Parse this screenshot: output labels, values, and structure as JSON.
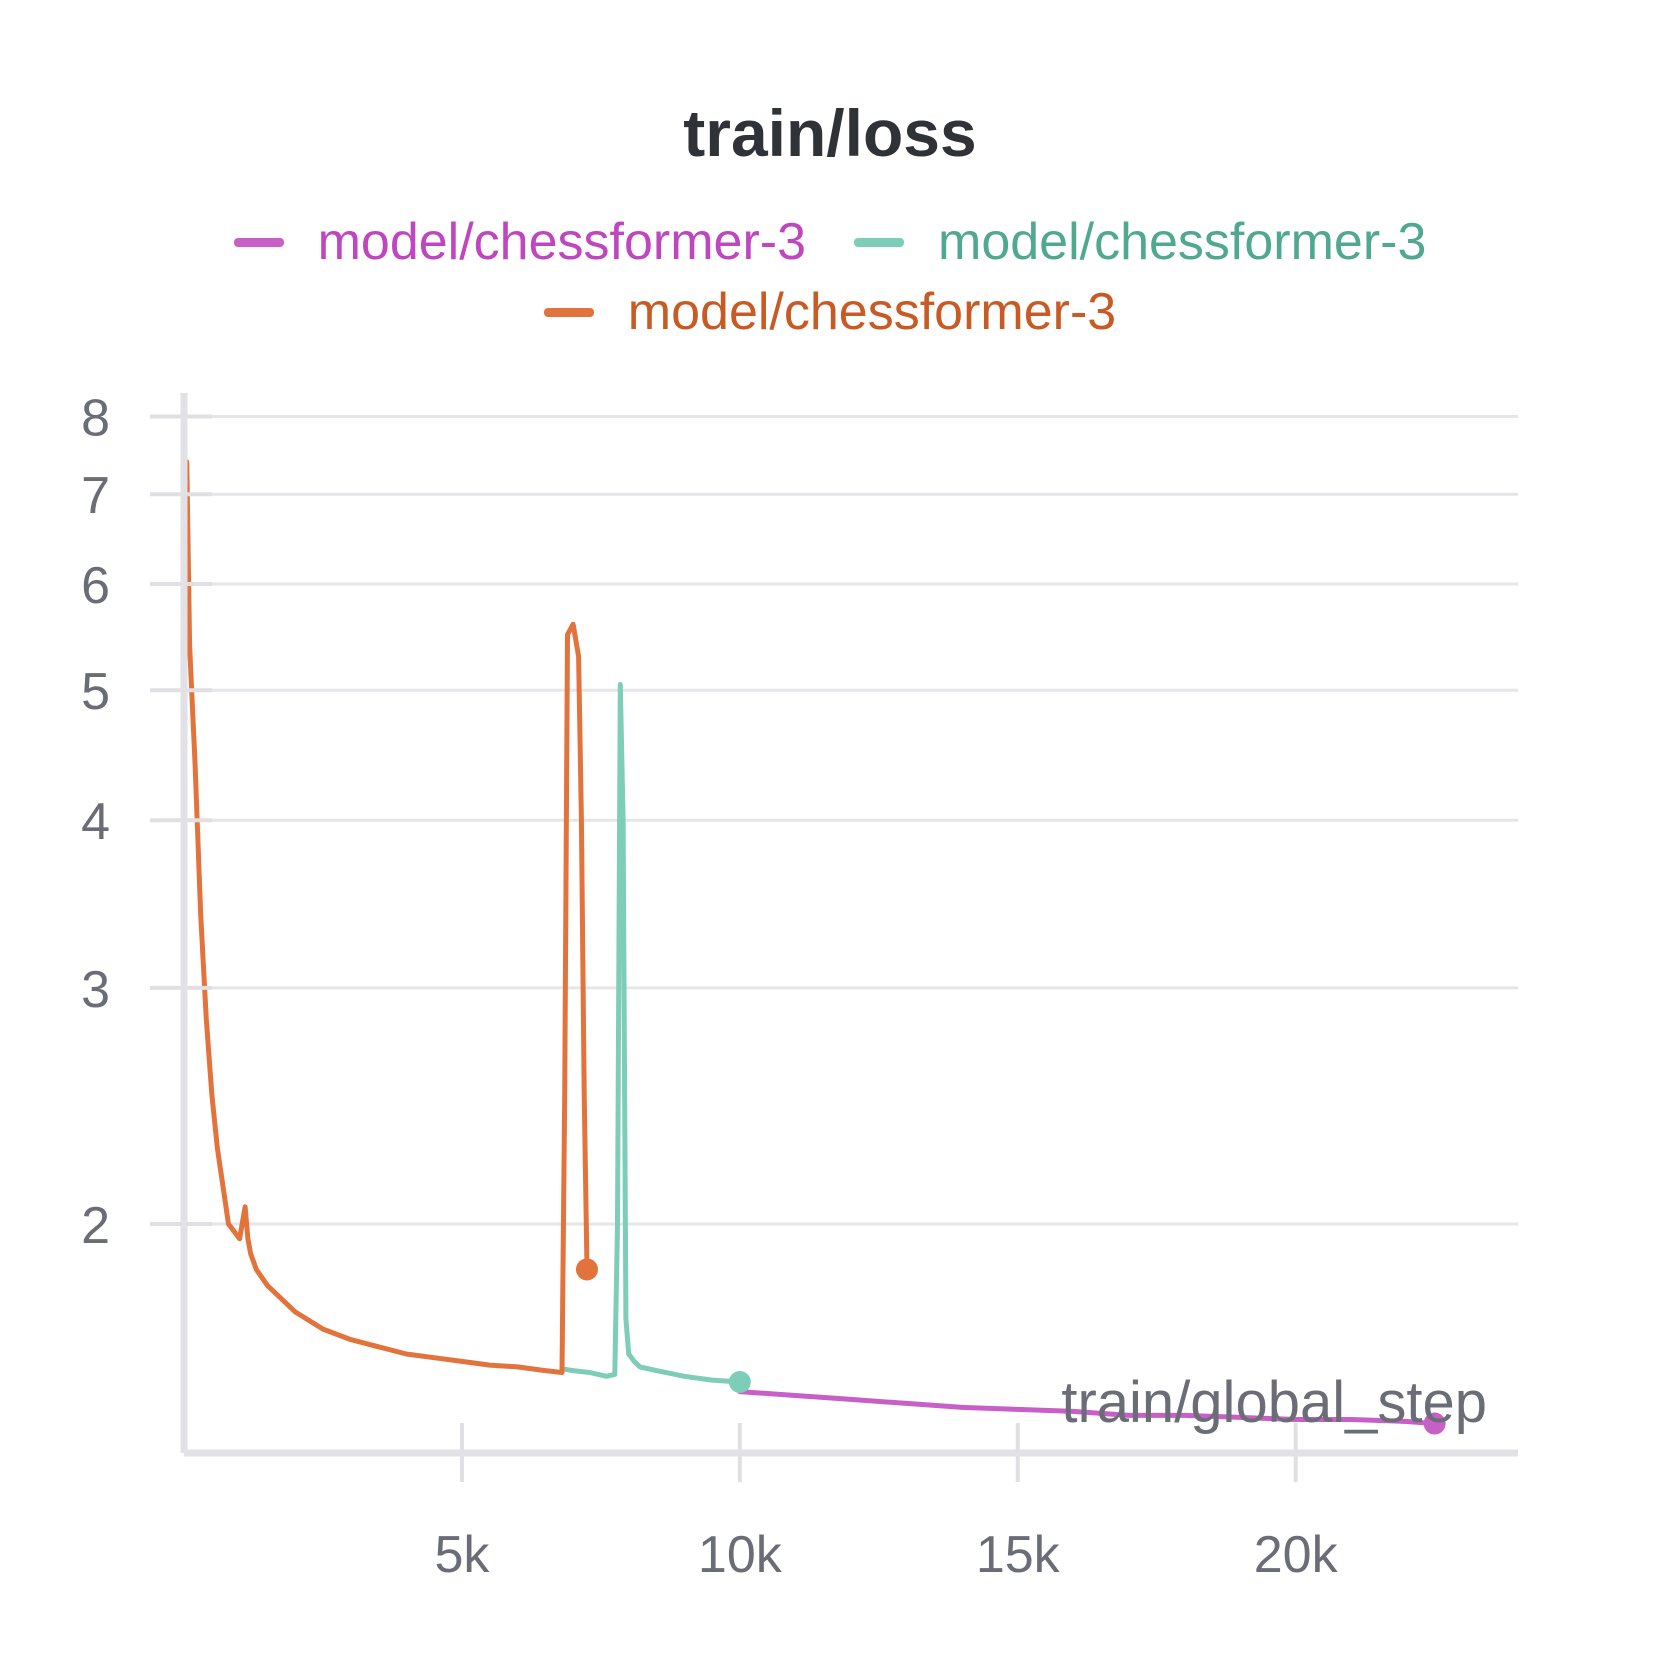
{
  "chart_data": {
    "type": "line",
    "title": "train/loss",
    "xlabel": "train/global_step",
    "ylabel": "",
    "yscale": "log",
    "xlim": [
      0,
      24000
    ],
    "ylim": [
      1.35,
      8.3
    ],
    "x_ticks": [
      {
        "value": 5000,
        "label": "5k"
      },
      {
        "value": 10000,
        "label": "10k"
      },
      {
        "value": 15000,
        "label": "15k"
      },
      {
        "value": 20000,
        "label": "20k"
      }
    ],
    "y_ticks": [
      {
        "value": 2,
        "label": "2"
      },
      {
        "value": 3,
        "label": "3"
      },
      {
        "value": 4,
        "label": "4"
      },
      {
        "value": 5,
        "label": "5"
      },
      {
        "value": 6,
        "label": "6"
      },
      {
        "value": 7,
        "label": "7"
      },
      {
        "value": 8,
        "label": "8"
      }
    ],
    "grid": true,
    "legend_position": "top-center",
    "series": [
      {
        "name": "model/chessformer-3",
        "color": "#c75fc7",
        "x": [
          10000,
          11000,
          12000,
          13000,
          14000,
          15000,
          16000,
          17000,
          18000,
          19000,
          20000,
          21000,
          22000,
          22500
        ],
        "y": [
          1.5,
          1.49,
          1.48,
          1.47,
          1.46,
          1.455,
          1.45,
          1.44,
          1.44,
          1.435,
          1.43,
          1.43,
          1.425,
          1.42
        ]
      },
      {
        "name": "model/chessformer-3",
        "color": "#7ecdb9",
        "x": [
          6800,
          7000,
          7300,
          7600,
          7750,
          7800,
          7850,
          7900,
          7950,
          8000,
          8100,
          8200,
          8500,
          9000,
          9500,
          10000
        ],
        "y": [
          1.56,
          1.555,
          1.55,
          1.54,
          1.545,
          2.0,
          5.05,
          4.0,
          1.7,
          1.6,
          1.58,
          1.565,
          1.555,
          1.54,
          1.53,
          1.525
        ]
      },
      {
        "name": "model/chessformer-3",
        "color": "#e2733d",
        "x": [
          50,
          100,
          200,
          300,
          400,
          500,
          600,
          800,
          1000,
          1100,
          1150,
          1200,
          1300,
          1500,
          2000,
          2500,
          3000,
          3500,
          4000,
          4500,
          5000,
          5500,
          6000,
          6500,
          6800,
          6850,
          6900,
          7000,
          7100,
          7150,
          7200,
          7250
        ],
        "y": [
          7.4,
          5.4,
          4.4,
          3.4,
          2.85,
          2.5,
          2.28,
          2.0,
          1.95,
          2.06,
          1.95,
          1.9,
          1.85,
          1.8,
          1.72,
          1.67,
          1.64,
          1.62,
          1.6,
          1.59,
          1.58,
          1.57,
          1.565,
          1.555,
          1.55,
          2.5,
          5.5,
          5.6,
          5.3,
          4.0,
          2.5,
          1.85
        ]
      }
    ]
  }
}
